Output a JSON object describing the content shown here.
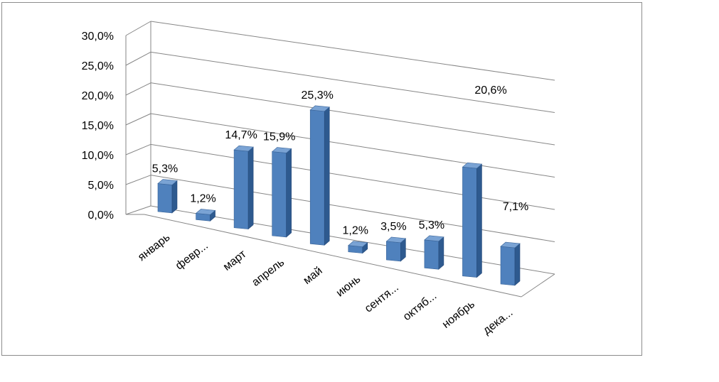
{
  "chart_data": {
    "type": "bar",
    "view": "3d-perspective",
    "categories": [
      "январь",
      "февр...",
      "март",
      "апрель",
      "май",
      "июнь",
      "сентя...",
      "октяб...",
      "ноябрь",
      "дека..."
    ],
    "values": [
      5.3,
      1.2,
      14.7,
      15.9,
      25.3,
      1.2,
      3.5,
      5.3,
      20.6,
      7.1
    ],
    "data_labels": [
      "5,3%",
      "1,2%",
      "14,7%",
      "15,9%",
      "25,3%",
      "1,2%",
      "3,5%",
      "5,3%",
      "20,6%",
      "7,1%"
    ],
    "y_ticks": [
      "0,0%",
      "5,0%",
      "10,0%",
      "15,0%",
      "20,0%",
      "25,0%",
      "30,0%"
    ],
    "ylim": [
      0,
      30
    ],
    "grid": true,
    "legend": "none",
    "colors": {
      "bar_front": "#4f81bd",
      "bar_side": "#2e5a8f",
      "bar_top": "#7aa3d4",
      "grid": "#868686"
    }
  }
}
